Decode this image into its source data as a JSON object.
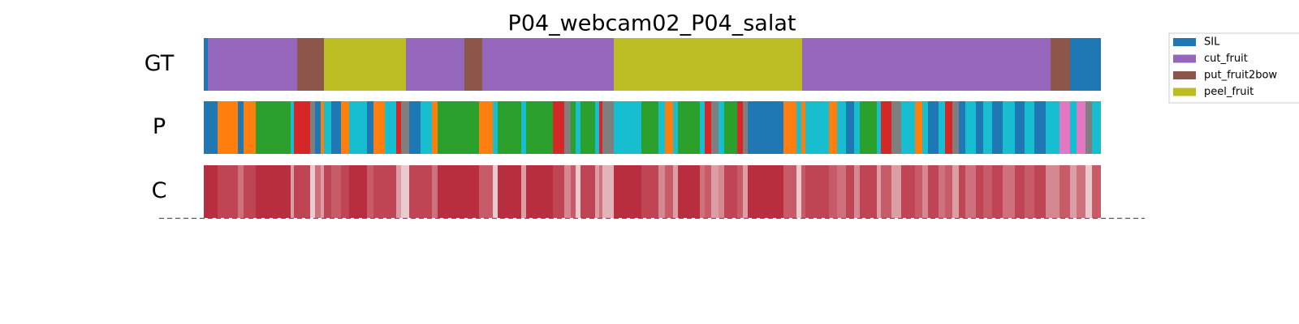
{
  "chart_data": {
    "type": "segmentation",
    "title": "P04_webcam02_P04_salat",
    "xlim": [
      0,
      1105
    ],
    "legend": [
      {
        "name": "SIL",
        "color": "#1f77b4"
      },
      {
        "name": "cut_fruit",
        "color": "#9467bd"
      },
      {
        "name": "put_fruit2bow",
        "color": "#8c564b"
      },
      {
        "name": "peel_fruit",
        "color": "#bcbd22"
      }
    ],
    "rows": [
      {
        "name": "GT",
        "bins": [
          0,
          5,
          115,
          148,
          249,
          321,
          343,
          505,
          737,
          1043,
          1067,
          1105
        ],
        "colors": [
          "#1f77b4",
          "#9467bd",
          "#8c564b",
          "#bcbd22",
          "#9467bd",
          "#8c564b",
          "#9467bd",
          "#bcbd22",
          "#9467bd",
          "#8c564b",
          "#1f77b4"
        ]
      },
      {
        "name": "P",
        "bins": [
          0,
          17,
          42,
          49,
          64,
          107,
          111,
          131,
          137,
          144,
          148,
          157,
          169,
          179,
          201,
          209,
          223,
          237,
          243,
          253,
          267,
          281,
          288,
          339,
          356,
          362,
          391,
          397,
          430,
          444,
          452,
          458,
          464,
          482,
          487,
          491,
          505,
          539,
          560,
          568,
          578,
          584,
          611,
          617,
          625,
          634,
          641,
          657,
          664,
          670,
          714,
          730,
          736,
          741,
          770,
          780,
          791,
          801,
          808,
          829,
          834,
          847,
          859,
          876,
          885,
          892,
          905,
          913,
          922,
          930,
          938,
          951,
          960,
          971,
          984,
          999,
          1011,
          1023,
          1037,
          1054,
          1067,
          1075,
          1086,
          1094,
          1105
        ],
        "colors": [
          "#1f77b4",
          "#ff7f0e",
          "#1f77b4",
          "#ff7f0e",
          "#2ca02c",
          "#17becf",
          "#d62728",
          "#7f7f7f",
          "#1f77b4",
          "#ff7f0e",
          "#17becf",
          "#1f77b4",
          "#ff7f0e",
          "#17becf",
          "#1f77b4",
          "#ff7f0e",
          "#17becf",
          "#d62728",
          "#7f7f7f",
          "#1f77b4",
          "#17becf",
          "#ff7f0e",
          "#2ca02c",
          "#ff7f0e",
          "#17becf",
          "#2ca02c",
          "#17becf",
          "#2ca02c",
          "#d62728",
          "#7f7f7f",
          "#2ca02c",
          "#17becf",
          "#2ca02c",
          "#17becf",
          "#d62728",
          "#7f7f7f",
          "#17becf",
          "#2ca02c",
          "#17becf",
          "#ff7f0e",
          "#17becf",
          "#2ca02c",
          "#17becf",
          "#d62728",
          "#7f7f7f",
          "#17becf",
          "#2ca02c",
          "#d62728",
          "#7f7f7f",
          "#1f77b4",
          "#ff7f0e",
          "#17becf",
          "#ff7f0e",
          "#17becf",
          "#ff7f0e",
          "#17becf",
          "#1f77b4",
          "#17becf",
          "#2ca02c",
          "#17becf",
          "#d62728",
          "#7f7f7f",
          "#17becf",
          "#ff7f0e",
          "#17becf",
          "#1f77b4",
          "#17becf",
          "#d62728",
          "#7f7f7f",
          "#1f77b4",
          "#17becf",
          "#1f77b4",
          "#17becf",
          "#1f77b4",
          "#17becf",
          "#1f77b4",
          "#17becf",
          "#1f77b4",
          "#17becf",
          "#e377c2",
          "#17becf",
          "#e377c2",
          "#7f7f7f",
          "#17becf"
        ]
      },
      {
        "name": "C",
        "vlim": [
          0,
          1
        ],
        "bins": [
          0,
          17,
          42,
          49,
          64,
          107,
          111,
          131,
          137,
          144,
          148,
          157,
          169,
          179,
          201,
          209,
          223,
          237,
          243,
          253,
          267,
          281,
          288,
          339,
          356,
          362,
          391,
          397,
          430,
          444,
          452,
          458,
          464,
          482,
          487,
          491,
          505,
          539,
          560,
          568,
          578,
          584,
          611,
          617,
          625,
          634,
          641,
          657,
          664,
          670,
          714,
          730,
          736,
          741,
          770,
          780,
          791,
          801,
          808,
          829,
          834,
          847,
          859,
          876,
          885,
          892,
          905,
          913,
          922,
          930,
          938,
          951,
          960,
          971,
          984,
          999,
          1011,
          1023,
          1037,
          1054,
          1067,
          1075,
          1086,
          1094,
          1105
        ],
        "values": [
          0.95,
          0.9,
          0.8,
          0.9,
          0.95,
          0.7,
          0.9,
          0.6,
          0.8,
          0.7,
          0.9,
          0.85,
          0.9,
          0.95,
          0.85,
          0.9,
          0.9,
          0.7,
          0.6,
          0.9,
          0.9,
          0.8,
          0.95,
          0.85,
          0.6,
          0.95,
          0.7,
          0.95,
          0.9,
          0.75,
          0.85,
          0.6,
          0.9,
          0.7,
          0.8,
          0.65,
          0.95,
          0.9,
          0.75,
          0.85,
          0.7,
          0.95,
          0.8,
          0.85,
          0.7,
          0.75,
          0.9,
          0.85,
          0.7,
          0.95,
          0.85,
          0.6,
          0.85,
          0.9,
          0.85,
          0.8,
          0.9,
          0.75,
          0.9,
          0.7,
          0.85,
          0.7,
          0.9,
          0.85,
          0.75,
          0.9,
          0.8,
          0.85,
          0.7,
          0.9,
          0.8,
          0.9,
          0.85,
          0.9,
          0.8,
          0.9,
          0.85,
          0.9,
          0.75,
          0.85,
          0.7,
          0.8,
          0.6,
          0.85
        ]
      }
    ]
  }
}
